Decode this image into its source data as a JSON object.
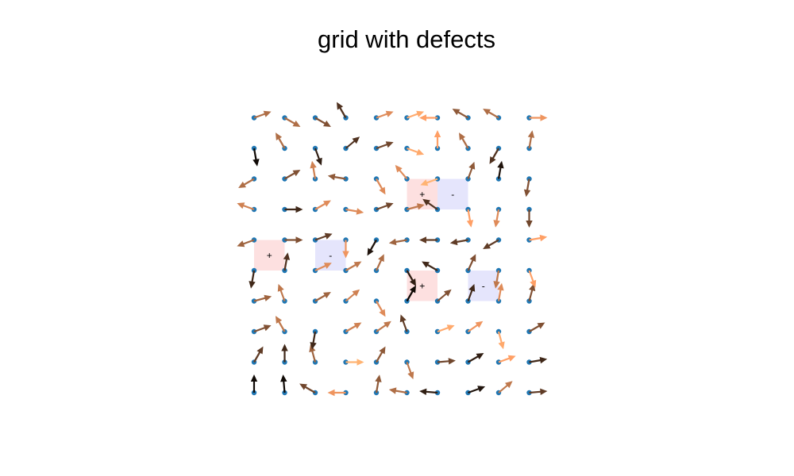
{
  "chart_data": {
    "type": "quiver",
    "title": "grid with defects",
    "xlabel": "",
    "ylabel": "",
    "axes_visible": false,
    "grid": false,
    "x": [
      0,
      1,
      2,
      3,
      4,
      5,
      6,
      7,
      8,
      9
    ],
    "y": [
      0,
      1,
      2,
      3,
      4,
      5,
      6,
      7,
      8,
      9
    ],
    "xlim": [
      -0.5,
      9.5
    ],
    "ylim": [
      -0.5,
      9.5
    ],
    "point_color": "#1f77b4",
    "arrow_colormap": "copper",
    "defect_colors": {
      "+": "#fde0e0",
      "-": "#e5e5fc"
    },
    "defects": [
      {
        "x": 0.5,
        "y": 4.5,
        "label": "+"
      },
      {
        "x": 2.5,
        "y": 4.5,
        "label": "-"
      },
      {
        "x": 5.5,
        "y": 6.5,
        "label": "+"
      },
      {
        "x": 6.5,
        "y": 6.5,
        "label": "-"
      },
      {
        "x": 5.5,
        "y": 3.5,
        "label": "+"
      },
      {
        "x": 7.5,
        "y": 3.5,
        "label": "-"
      }
    ],
    "angles_deg": [
      [
        90,
        95,
        150,
        180,
        80,
        170,
        175,
        20,
        40,
        5
      ],
      [
        60,
        90,
        105,
        0,
        60,
        290,
        5,
        30,
        20,
        10
      ],
      [
        20,
        120,
        260,
        30,
        35,
        110,
        20,
        35,
        285,
        30
      ],
      [
        15,
        110,
        30,
        40,
        300,
        60,
        40,
        70,
        80,
        75
      ],
      [
        260,
        80,
        25,
        30,
        65,
        300,
        150,
        65,
        260,
        290
      ],
      [
        200,
        0,
        20,
        270,
        240,
        190,
        180,
        190,
        210,
        10
      ],
      [
        160,
        0,
        30,
        350,
        20,
        15,
        145,
        280,
        260,
        270
      ],
      [
        210,
        30,
        100,
        170,
        300,
        130,
        200,
        70,
        80,
        260
      ],
      [
        280,
        120,
        290,
        40,
        20,
        340,
        90,
        120,
        240,
        80
      ],
      [
        20,
        330,
        330,
        120,
        20,
        20,
        180,
        150,
        150,
        0
      ]
    ],
    "color_values": [
      [
        0.05,
        0.05,
        0.35,
        0.75,
        0.45,
        0.55,
        0.15,
        0.1,
        0.6,
        0.3
      ],
      [
        0.3,
        0.2,
        0.5,
        0.9,
        0.45,
        0.6,
        0.35,
        0.15,
        0.8,
        0.2
      ],
      [
        0.4,
        0.6,
        0.2,
        0.65,
        0.6,
        0.3,
        0.85,
        0.75,
        0.85,
        0.4
      ],
      [
        0.5,
        0.6,
        0.5,
        0.65,
        0.7,
        0.05,
        0.4,
        0.2,
        0.7,
        0.4
      ],
      [
        0.2,
        0.25,
        0.7,
        0.6,
        0.55,
        0.15,
        0.2,
        0.4,
        0.6,
        0.8
      ],
      [
        0.5,
        0.4,
        0.3,
        0.75,
        0.1,
        0.5,
        0.3,
        0.3,
        0.3,
        0.8
      ],
      [
        0.65,
        0.2,
        0.7,
        0.7,
        0.35,
        0.6,
        0.25,
        0.8,
        0.7,
        0.35
      ],
      [
        0.55,
        0.4,
        0.65,
        0.45,
        0.7,
        0.7,
        0.9,
        0.45,
        0.1,
        0.4
      ],
      [
        0.05,
        0.55,
        0.15,
        0.25,
        0.35,
        0.85,
        0.8,
        0.55,
        0.25,
        0.55
      ],
      [
        0.55,
        0.55,
        0.4,
        0.25,
        0.7,
        0.85,
        0.8,
        0.45,
        0.55,
        0.75
      ]
    ]
  }
}
